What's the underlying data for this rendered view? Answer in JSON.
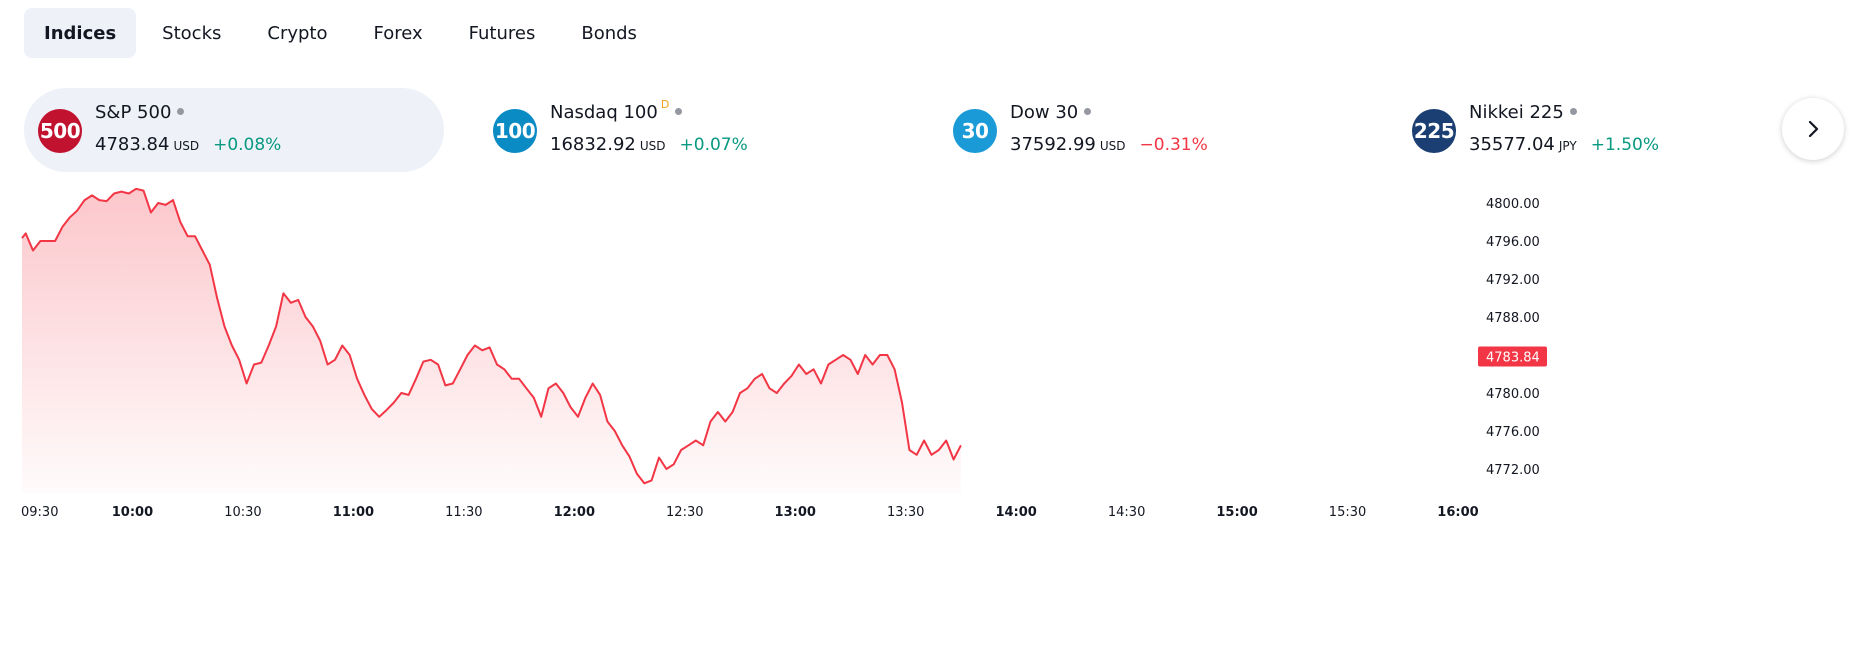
{
  "tabs": [
    {
      "label": "Indices",
      "active": true
    },
    {
      "label": "Stocks",
      "active": false
    },
    {
      "label": "Crypto",
      "active": false
    },
    {
      "label": "Forex",
      "active": false
    },
    {
      "label": "Futures",
      "active": false
    },
    {
      "label": "Bonds",
      "active": false
    }
  ],
  "cards": [
    {
      "badge": "500",
      "badge_color": "#c1122f",
      "name": "S&P 500",
      "delayed": false,
      "price": "4783.84",
      "currency": "USD",
      "change": "+0.08%",
      "direction": "up",
      "active": true
    },
    {
      "badge": "100",
      "badge_color": "#0a8bc4",
      "name": "Nasdaq 100",
      "delayed": true,
      "delayed_mark": "D",
      "price": "16832.92",
      "currency": "USD",
      "change": "+0.07%",
      "direction": "up",
      "active": false
    },
    {
      "badge": "30",
      "badge_color": "#1a9ad6",
      "name": "Dow 30",
      "delayed": false,
      "price": "37592.99",
      "currency": "USD",
      "change": "−0.31%",
      "direction": "down",
      "active": false
    },
    {
      "badge": "225",
      "badge_color": "#1b3f73",
      "name": "Nikkei 225",
      "delayed": false,
      "price": "35577.04",
      "currency": "JPY",
      "change": "+1.50%",
      "direction": "up",
      "active": false
    }
  ],
  "next_icon": "chevron-right-icon",
  "colors": {
    "line": "#f23645",
    "up": "#089981",
    "down": "#f23645",
    "tab_active_bg": "#eef1f8"
  },
  "chart_data": {
    "type": "area",
    "series_color": "#f23645",
    "x": [
      "09:30",
      "10:00",
      "10:30",
      "11:00",
      "11:30",
      "12:00",
      "12:30",
      "13:00",
      "13:30",
      "14:00",
      "14:30",
      "15:00",
      "15:30",
      "16:00"
    ],
    "x_bold": [
      "10:00",
      "11:00",
      "12:00",
      "13:00",
      "14:00",
      "15:00",
      "16:00"
    ],
    "x_range_minutes": [
      0,
      390
    ],
    "y_ticks": [
      "4772.00",
      "4776.00",
      "4780.00",
      "4784.00",
      "4788.00",
      "4792.00",
      "4796.00",
      "4800.00"
    ],
    "y_tick_values": [
      4772,
      4776,
      4780,
      4784,
      4788,
      4792,
      4796,
      4800
    ],
    "ylim": [
      4769.5,
      4801.5
    ],
    "last_value": "4783.84",
    "points": [
      [
        0,
        4796.3
      ],
      [
        1,
        4796.8
      ],
      [
        3,
        4795
      ],
      [
        5,
        4796
      ],
      [
        7,
        4796
      ],
      [
        9,
        4796
      ],
      [
        11,
        4797.5
      ],
      [
        13,
        4798.5
      ],
      [
        15,
        4799.2
      ],
      [
        17,
        4800.3
      ],
      [
        19,
        4800.8
      ],
      [
        21,
        4800.3
      ],
      [
        23,
        4800.2
      ],
      [
        25,
        4801
      ],
      [
        27,
        4801.2
      ],
      [
        29,
        4801
      ],
      [
        31,
        4801.5
      ],
      [
        33,
        4801.3
      ],
      [
        35,
        4799
      ],
      [
        37,
        4800
      ],
      [
        39,
        4799.8
      ],
      [
        41,
        4800.3
      ],
      [
        43,
        4798
      ],
      [
        45,
        4796.5
      ],
      [
        47,
        4796.5
      ],
      [
        49,
        4795
      ],
      [
        51,
        4793.5
      ],
      [
        53,
        4790
      ],
      [
        55,
        4787
      ],
      [
        57,
        4785
      ],
      [
        59,
        4783.5
      ],
      [
        61,
        4781
      ],
      [
        63,
        4783
      ],
      [
        65,
        4783.2
      ],
      [
        67,
        4785
      ],
      [
        69,
        4787
      ],
      [
        71,
        4790.5
      ],
      [
        73,
        4789.5
      ],
      [
        75,
        4789.8
      ],
      [
        77,
        4788
      ],
      [
        79,
        4787
      ],
      [
        81,
        4785.5
      ],
      [
        83,
        4783
      ],
      [
        85,
        4783.5
      ],
      [
        87,
        4785
      ],
      [
        89,
        4784
      ],
      [
        91,
        4781.5
      ],
      [
        93,
        4779.8
      ],
      [
        95,
        4778.3
      ],
      [
        97,
        4777.5
      ],
      [
        99,
        4778.2
      ],
      [
        101,
        4779
      ],
      [
        103,
        4780
      ],
      [
        105,
        4779.8
      ],
      [
        107,
        4781.5
      ],
      [
        109,
        4783.3
      ],
      [
        111,
        4783.5
      ],
      [
        113,
        4783
      ],
      [
        115,
        4780.8
      ],
      [
        117,
        4781
      ],
      [
        119,
        4782.5
      ],
      [
        121,
        4784
      ],
      [
        123,
        4785
      ],
      [
        125,
        4784.5
      ],
      [
        127,
        4784.8
      ],
      [
        129,
        4783
      ],
      [
        131,
        4782.5
      ],
      [
        133,
        4781.5
      ],
      [
        135,
        4781.5
      ],
      [
        137,
        4780.5
      ],
      [
        139,
        4779.5
      ],
      [
        141,
        4777.5
      ],
      [
        143,
        4780.5
      ],
      [
        145,
        4781
      ],
      [
        147,
        4780
      ],
      [
        149,
        4778.5
      ],
      [
        151,
        4777.5
      ],
      [
        153,
        4779.5
      ],
      [
        155,
        4781
      ],
      [
        157,
        4779.8
      ],
      [
        159,
        4777
      ],
      [
        161,
        4776
      ],
      [
        163,
        4774.5
      ],
      [
        165,
        4773.3
      ],
      [
        167,
        4771.5
      ],
      [
        169,
        4770.5
      ],
      [
        171,
        4770.8
      ],
      [
        173,
        4773.2
      ],
      [
        175,
        4772
      ],
      [
        177,
        4772.5
      ],
      [
        179,
        4774
      ],
      [
        181,
        4774.5
      ],
      [
        183,
        4775
      ],
      [
        185,
        4774.5
      ],
      [
        187,
        4777
      ],
      [
        189,
        4778
      ],
      [
        191,
        4777
      ],
      [
        193,
        4778
      ],
      [
        195,
        4780
      ],
      [
        197,
        4780.5
      ],
      [
        199,
        4781.5
      ],
      [
        201,
        4782
      ],
      [
        203,
        4780.5
      ],
      [
        205,
        4780
      ],
      [
        207,
        4781
      ],
      [
        209,
        4781.8
      ],
      [
        211,
        4783
      ],
      [
        213,
        4782
      ],
      [
        215,
        4782.5
      ],
      [
        217,
        4781
      ],
      [
        219,
        4783
      ],
      [
        221,
        4783.5
      ],
      [
        223,
        4784
      ],
      [
        225,
        4783.5
      ],
      [
        227,
        4782
      ],
      [
        229,
        4784
      ],
      [
        231,
        4783
      ],
      [
        233,
        4784
      ],
      [
        235,
        4784
      ],
      [
        237,
        4782.5
      ],
      [
        239,
        4779
      ],
      [
        241,
        4774
      ],
      [
        243,
        4773.5
      ],
      [
        245,
        4775
      ],
      [
        247,
        4773.5
      ],
      [
        249,
        4774
      ],
      [
        251,
        4775
      ],
      [
        253,
        4773
      ],
      [
        255,
        4774.5
      ]
    ]
  }
}
